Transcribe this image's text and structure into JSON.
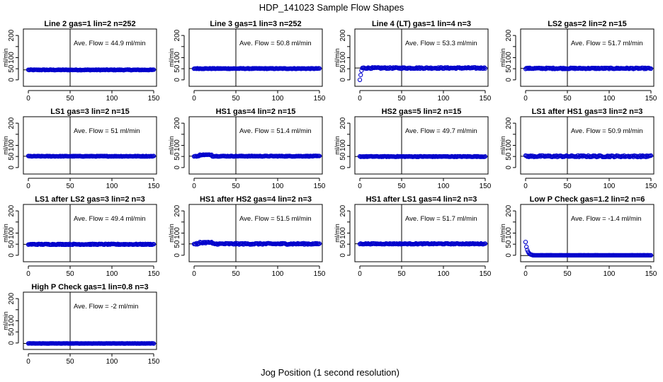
{
  "title": "HDP_141023  Sample Flow Shapes",
  "chart_data": {
    "type": "scatter",
    "title": "HDP_141023  Sample Flow Shapes",
    "xlabel": "Jog Position (1 second resolution)",
    "ylabel": "ml/min",
    "xlim": [
      0,
      150
    ],
    "ylim": [
      -10,
      210
    ],
    "xticks": [
      "0",
      "50",
      "100",
      "150"
    ],
    "yticks": [
      "0",
      "100",
      "200"
    ],
    "yticks_minor": [
      "50"
    ],
    "vline_x": 50,
    "avg_label_prefix": "Ave. Flow =",
    "avg_label_unit": "ml/min",
    "marker_color": "#0000cc",
    "line_color": "#000000",
    "panels": [
      {
        "title": "Line 2 gas=1 lin=2 n=252",
        "avg": "44.9",
        "avg_value": 44.9,
        "shape": "flat",
        "noise": 1.5,
        "start": null
      },
      {
        "title": "Line 3 gas=1 lin=3 n=252",
        "avg": "50.8",
        "avg_value": 50.8,
        "shape": "flat",
        "noise": 1.5,
        "start": 40
      },
      {
        "title": "Line 4 (LT) gas=1 lin=4 n=3",
        "avg": "53.3",
        "avg_value": 53.3,
        "shape": "ramp_up",
        "noise": 3,
        "start": 0
      },
      {
        "title": "LS2 gas=2 lin=2 n=15",
        "avg": "51.7",
        "avg_value": 51.7,
        "shape": "flat",
        "noise": 2.5,
        "start": 45
      },
      {
        "title": "LS1 gas=3 lin=2 n=15",
        "avg": "51",
        "avg_value": 51,
        "shape": "flat",
        "noise": 1.2,
        "start": null
      },
      {
        "title": "HS1 gas=4 lin=2 n=15",
        "avg": "51.4",
        "avg_value": 51.4,
        "shape": "bump",
        "noise": 1.5,
        "start": 45
      },
      {
        "title": "HS2 gas=5 lin=2 n=15",
        "avg": "49.7",
        "avg_value": 49.7,
        "shape": "flat",
        "noise": 1.5,
        "start": 42
      },
      {
        "title": "LS1 after HS1 gas=3 lin=2 n=3",
        "avg": "50.9",
        "avg_value": 50.9,
        "shape": "flat",
        "noise": 3.5,
        "start": null
      },
      {
        "title": "LS1 after LS2 gas=3 lin=2 n=3",
        "avg": "49.4",
        "avg_value": 49.4,
        "shape": "flat",
        "noise": 2,
        "start": null
      },
      {
        "title": "HS1 after HS2 gas=4 lin=2 n=3",
        "avg": "51.5",
        "avg_value": 51.5,
        "shape": "bump",
        "noise": 3,
        "start": 45
      },
      {
        "title": "HS1 after LS1 gas=4 lin=2 n=3",
        "avg": "51.7",
        "avg_value": 51.7,
        "shape": "flat",
        "noise": 2,
        "start": 45
      },
      {
        "title": "Low P Check gas=1.2 lin=2 n=6",
        "avg": "-1.4",
        "avg_value": -1.4,
        "shape": "decay",
        "noise": 0.5,
        "start": 40
      },
      {
        "title": "High P Check gas=1 lin=0.8 n=3",
        "avg": "-2",
        "avg_value": -2,
        "shape": "flat",
        "noise": 0.5,
        "start": null
      }
    ]
  }
}
